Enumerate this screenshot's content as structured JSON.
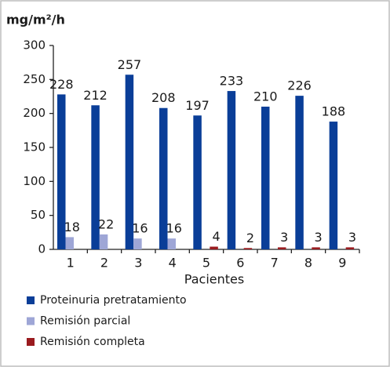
{
  "chart_data": {
    "type": "bar",
    "y_label": "mg/m²/h",
    "x_label": "Pacientes",
    "categories": [
      "1",
      "2",
      "3",
      "4",
      "5",
      "6",
      "7",
      "8",
      "9"
    ],
    "series": [
      {
        "name": "Proteinuria pretratamiento",
        "color": "#0a3e98",
        "values": [
          228,
          212,
          257,
          208,
          197,
          233,
          210,
          226,
          188
        ]
      },
      {
        "name": "Remisión parcial",
        "color": "#9ea6d6",
        "values": [
          18,
          22,
          16,
          16,
          null,
          null,
          null,
          null,
          null
        ]
      },
      {
        "name": "Remisión completa",
        "color": "#9a1b1f",
        "values": [
          null,
          null,
          null,
          null,
          4,
          2,
          3,
          3,
          3
        ]
      }
    ],
    "ylim": [
      0,
      300
    ],
    "yticks": [
      0,
      50,
      100,
      150,
      200,
      250,
      300
    ],
    "legend": "bottom",
    "grid": false
  }
}
